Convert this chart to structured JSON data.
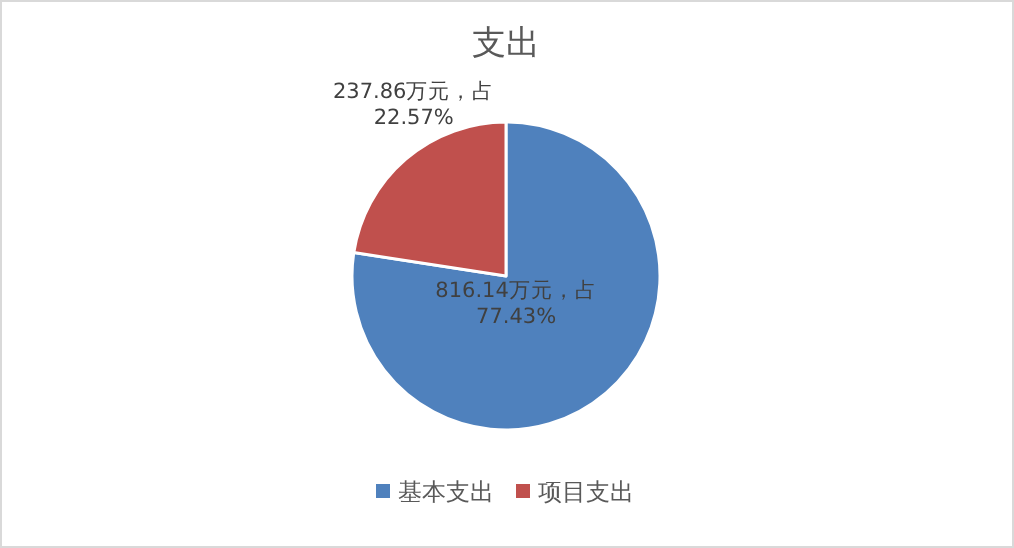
{
  "chart_data": {
    "type": "pie",
    "title": "支出",
    "categories": [
      "基本支出",
      "项目支出"
    ],
    "values": [
      816.14,
      237.86
    ],
    "colors": [
      "#4f81bd",
      "#c0504d"
    ],
    "value_labels": [
      "816.14万元，占\n77.43%",
      "237.86万元，占\n22.57%"
    ],
    "legend": "bottom"
  }
}
